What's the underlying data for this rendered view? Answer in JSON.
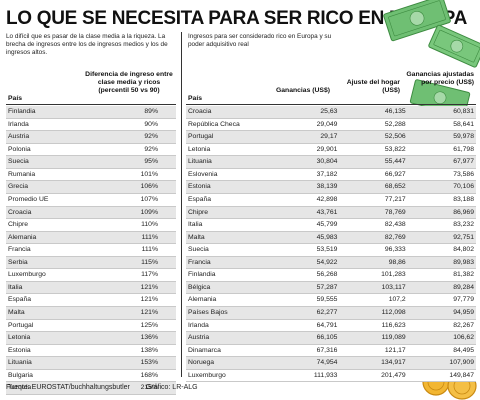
{
  "title": "LO QUE SE NECESITA PARA SER RICO EN EUROPA",
  "intro_left": "Lo difícil que es pasar de la clase media a la riqueza. La brecha de ingresos entre los de ingresos medios y los de ingresos altos.",
  "intro_right": "Ingresos para ser considerado rico en Europa y su poder adquisitivo real",
  "left_table": {
    "headers": {
      "country": "País",
      "value": "Diferencia de ingreso entre clase media y ricos (percentil 50 vs 90)"
    },
    "rows": [
      {
        "country": "Finlandia",
        "value": "89%"
      },
      {
        "country": "Irlanda",
        "value": "90%"
      },
      {
        "country": "Austria",
        "value": "92%"
      },
      {
        "country": "Polonia",
        "value": "92%"
      },
      {
        "country": "Suecia",
        "value": "95%"
      },
      {
        "country": "Rumania",
        "value": "101%"
      },
      {
        "country": "Grecia",
        "value": "106%"
      },
      {
        "country": "Promedio UE",
        "value": "107%"
      },
      {
        "country": "Croacia",
        "value": "109%"
      },
      {
        "country": "Chipre",
        "value": "110%"
      },
      {
        "country": "Alemania",
        "value": "111%"
      },
      {
        "country": "Francia",
        "value": "111%"
      },
      {
        "country": "Serbia",
        "value": "115%"
      },
      {
        "country": "Luxemburgo",
        "value": "117%"
      },
      {
        "country": "Italia",
        "value": "121%"
      },
      {
        "country": "España",
        "value": "121%"
      },
      {
        "country": "Malta",
        "value": "121%"
      },
      {
        "country": "Portugal",
        "value": "125%"
      },
      {
        "country": "Letonia",
        "value": "136%"
      },
      {
        "country": "Estonia",
        "value": "138%"
      },
      {
        "country": "Lituania",
        "value": "153%"
      },
      {
        "country": "Bulgaria",
        "value": "168%"
      },
      {
        "country": "Turquía",
        "value": "215%"
      }
    ]
  },
  "right_table": {
    "headers": {
      "country": "País",
      "earnings": "Ganancias (US$)",
      "adjustment": "Ajuste del hogar (US$)",
      "adjusted": "Ganancias ajustadas por precio (US$)"
    },
    "rows": [
      {
        "country": "Croacia",
        "earnings": "25,63",
        "adjustment": "46,135",
        "adjusted": "60,831"
      },
      {
        "country": "República Checa",
        "earnings": "29,049",
        "adjustment": "52,288",
        "adjusted": "58,641"
      },
      {
        "country": "Portugal",
        "earnings": "29,17",
        "adjustment": "52,506",
        "adjusted": "59,978"
      },
      {
        "country": "Letonia",
        "earnings": "29,901",
        "adjustment": "53,822",
        "adjusted": "61,798"
      },
      {
        "country": "Lituania",
        "earnings": "30,804",
        "adjustment": "55,447",
        "adjusted": "67,977"
      },
      {
        "country": "Eslovenia",
        "earnings": "37,182",
        "adjustment": "66,927",
        "adjusted": "73,586"
      },
      {
        "country": "Estonia",
        "earnings": "38,139",
        "adjustment": "68,652",
        "adjusted": "70,106"
      },
      {
        "country": "España",
        "earnings": "42,898",
        "adjustment": "77,217",
        "adjusted": "83,188"
      },
      {
        "country": "Chipre",
        "earnings": "43,761",
        "adjustment": "78,769",
        "adjusted": "86,969"
      },
      {
        "country": "Italia",
        "earnings": "45,799",
        "adjustment": "82,438",
        "adjusted": "83,232"
      },
      {
        "country": "Malta",
        "earnings": "45,983",
        "adjustment": "82,769",
        "adjusted": "92,751"
      },
      {
        "country": "Suecia",
        "earnings": "53,519",
        "adjustment": "96,333",
        "adjusted": "84,802"
      },
      {
        "country": "Francia",
        "earnings": "54,922",
        "adjustment": "98,86",
        "adjusted": "89,983"
      },
      {
        "country": "Finlandia",
        "earnings": "56,268",
        "adjustment": "101,283",
        "adjusted": "81,382"
      },
      {
        "country": "Bélgica",
        "earnings": "57,287",
        "adjustment": "103,117",
        "adjusted": "89,284"
      },
      {
        "country": "Alemania",
        "earnings": "59,555",
        "adjustment": "107,2",
        "adjusted": "97,779"
      },
      {
        "country": "Países Bajos",
        "earnings": "62,277",
        "adjustment": "112,098",
        "adjusted": "94,959"
      },
      {
        "country": "Irlanda",
        "earnings": "64,791",
        "adjustment": "116,623",
        "adjusted": "82,267"
      },
      {
        "country": "Austria",
        "earnings": "66,105",
        "adjustment": "119,089",
        "adjusted": "106,62"
      },
      {
        "country": "Dinamarca",
        "earnings": "67,316",
        "adjustment": "121,17",
        "adjusted": "84,495"
      },
      {
        "country": "Noruega",
        "earnings": "74,954",
        "adjustment": "134,917",
        "adjusted": "107,909"
      },
      {
        "country": "Luxemburgo",
        "earnings": "111,933",
        "adjustment": "201,479",
        "adjusted": "149,847"
      }
    ]
  },
  "footer": {
    "source": "Fuente: EUROSTAT/buchhaltungsbutler",
    "graphic": "Gráfico: LR-ALG"
  },
  "colors": {
    "banknote": "#6fbf73",
    "banknote_dark": "#3d8b40",
    "coin": "#f2b632",
    "coin_dark": "#c98a12",
    "stripe": "#e6e6e6"
  },
  "chart_data": {
    "type": "table",
    "title": "LO QUE SE NECESITA PARA SER RICO EN EUROPA",
    "tables": [
      {
        "columns": [
          "País",
          "Diferencia de ingreso entre clase media y ricos (percentil 50 vs 90)"
        ],
        "rows": [
          [
            "Finlandia",
            "89%"
          ],
          [
            "Irlanda",
            "90%"
          ],
          [
            "Austria",
            "92%"
          ],
          [
            "Polonia",
            "92%"
          ],
          [
            "Suecia",
            "95%"
          ],
          [
            "Rumania",
            "101%"
          ],
          [
            "Grecia",
            "106%"
          ],
          [
            "Promedio UE",
            "107%"
          ],
          [
            "Croacia",
            "109%"
          ],
          [
            "Chipre",
            "110%"
          ],
          [
            "Alemania",
            "111%"
          ],
          [
            "Francia",
            "111%"
          ],
          [
            "Serbia",
            "115%"
          ],
          [
            "Luxemburgo",
            "117%"
          ],
          [
            "Italia",
            "121%"
          ],
          [
            "España",
            "121%"
          ],
          [
            "Malta",
            "121%"
          ],
          [
            "Portugal",
            "125%"
          ],
          [
            "Letonia",
            "136%"
          ],
          [
            "Estonia",
            "138%"
          ],
          [
            "Lituania",
            "153%"
          ],
          [
            "Bulgaria",
            "168%"
          ],
          [
            "Turquía",
            "215%"
          ]
        ]
      },
      {
        "columns": [
          "País",
          "Ganancias (US$)",
          "Ajuste del hogar (US$)",
          "Ganancias ajustadas por precio (US$)"
        ],
        "rows": [
          [
            "Croacia",
            "25,63",
            "46,135",
            "60,831"
          ],
          [
            "República Checa",
            "29,049",
            "52,288",
            "58,641"
          ],
          [
            "Portugal",
            "29,17",
            "52,506",
            "59,978"
          ],
          [
            "Letonia",
            "29,901",
            "53,822",
            "61,798"
          ],
          [
            "Lituania",
            "30,804",
            "55,447",
            "67,977"
          ],
          [
            "Eslovenia",
            "37,182",
            "66,927",
            "73,586"
          ],
          [
            "Estonia",
            "38,139",
            "68,652",
            "70,106"
          ],
          [
            "España",
            "42,898",
            "77,217",
            "83,188"
          ],
          [
            "Chipre",
            "43,761",
            "78,769",
            "86,969"
          ],
          [
            "Italia",
            "45,799",
            "82,438",
            "83,232"
          ],
          [
            "Malta",
            "45,983",
            "82,769",
            "92,751"
          ],
          [
            "Suecia",
            "53,519",
            "96,333",
            "84,802"
          ],
          [
            "Francia",
            "54,922",
            "98,86",
            "89,983"
          ],
          [
            "Finlandia",
            "56,268",
            "101,283",
            "81,382"
          ],
          [
            "Bélgica",
            "57,287",
            "103,117",
            "89,284"
          ],
          [
            "Alemania",
            "59,555",
            "107,2",
            "97,779"
          ],
          [
            "Países Bajos",
            "62,277",
            "112,098",
            "94,959"
          ],
          [
            "Irlanda",
            "64,791",
            "116,623",
            "82,267"
          ],
          [
            "Austria",
            "66,105",
            "119,089",
            "106,62"
          ],
          [
            "Dinamarca",
            "67,316",
            "121,17",
            "84,495"
          ],
          [
            "Noruega",
            "74,954",
            "134,917",
            "107,909"
          ],
          [
            "Luxemburgo",
            "111,933",
            "201,479",
            "149,847"
          ]
        ]
      }
    ]
  }
}
